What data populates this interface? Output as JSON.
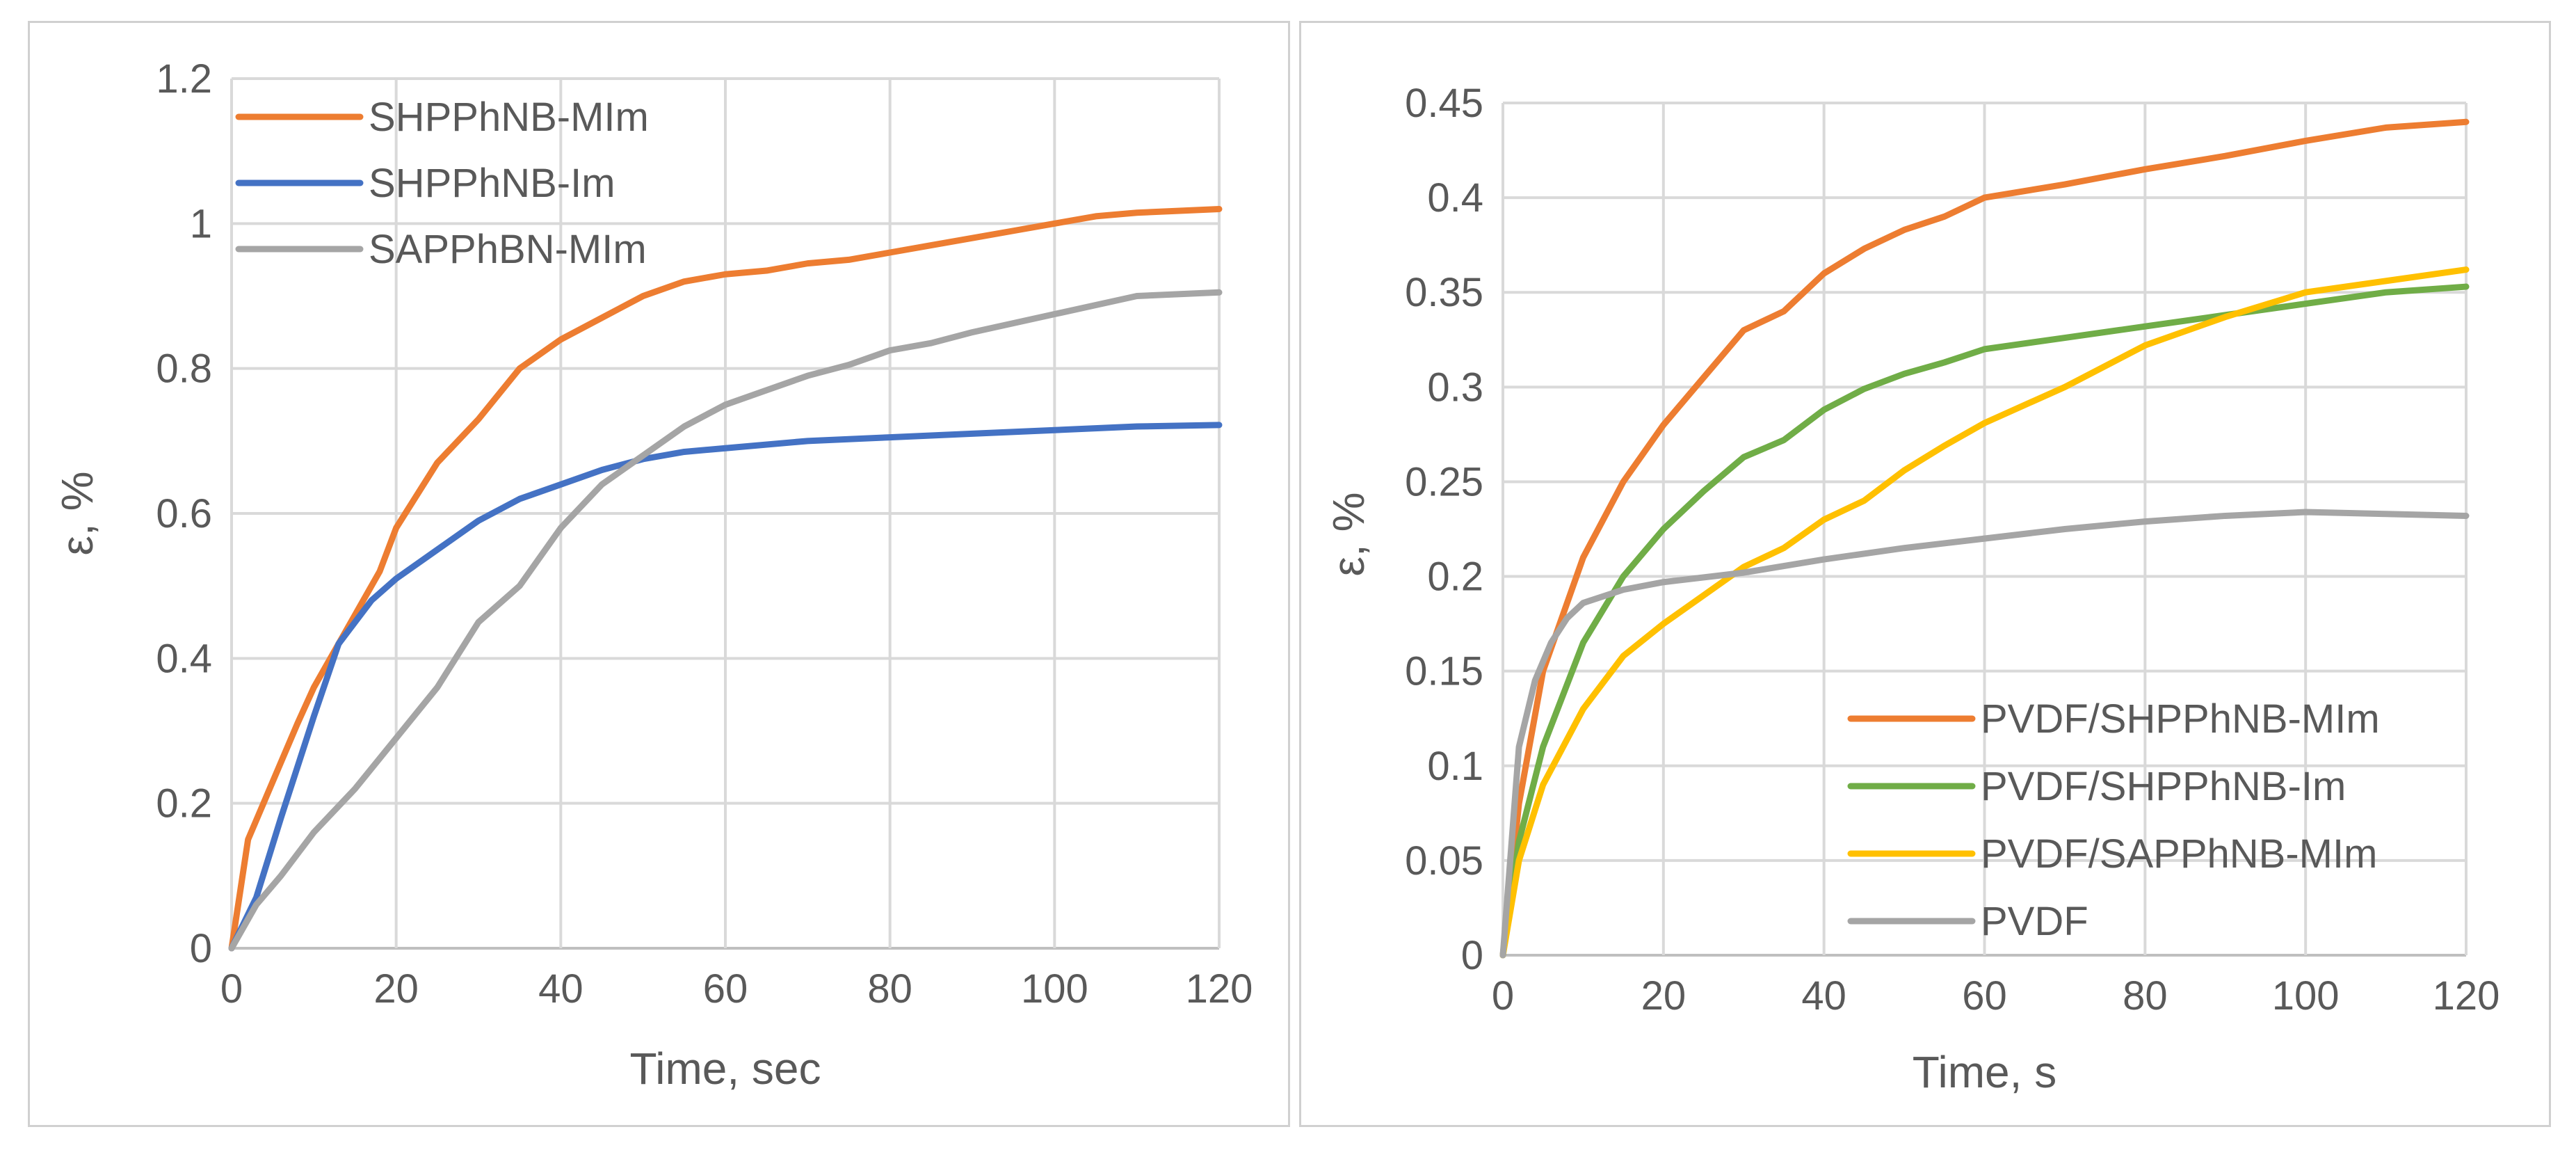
{
  "chart_data": [
    {
      "type": "line",
      "title": "",
      "xlabel": "Time, sec",
      "ylabel": "ε, %",
      "xlim": [
        0,
        120
      ],
      "ylim": [
        0,
        1.2
      ],
      "xticks": [
        0,
        20,
        40,
        60,
        80,
        100,
        120
      ],
      "yticks": [
        0,
        0.2,
        0.4,
        0.6,
        0.8,
        1,
        1.2
      ],
      "xtick_labels": [
        "0",
        "20",
        "40",
        "60",
        "80",
        "100",
        "120"
      ],
      "ytick_labels": [
        "0",
        "0.2",
        "0.4",
        "0.6",
        "0.8",
        "1",
        "1.2"
      ],
      "grid": true,
      "legend_position": "top-left",
      "series": [
        {
          "name": "SHPPhNB-MIm",
          "color": "#ED7D31",
          "x": [
            0,
            2,
            5,
            8,
            10,
            15,
            18,
            20,
            25,
            30,
            35,
            40,
            45,
            50,
            55,
            60,
            65,
            70,
            75,
            80,
            85,
            90,
            95,
            100,
            105,
            110,
            120
          ],
          "y": [
            0,
            0.15,
            0.23,
            0.31,
            0.36,
            0.46,
            0.52,
            0.58,
            0.67,
            0.73,
            0.8,
            0.84,
            0.87,
            0.9,
            0.92,
            0.93,
            0.935,
            0.945,
            0.95,
            0.96,
            0.97,
            0.98,
            0.99,
            1.0,
            1.01,
            1.015,
            1.02
          ]
        },
        {
          "name": "SHPPhNB-Im",
          "color": "#4472C4",
          "x": [
            0,
            3,
            6,
            10,
            13,
            17,
            20,
            25,
            30,
            35,
            40,
            45,
            50,
            55,
            60,
            70,
            80,
            90,
            100,
            110,
            120
          ],
          "y": [
            0,
            0.07,
            0.18,
            0.32,
            0.42,
            0.48,
            0.51,
            0.55,
            0.59,
            0.62,
            0.64,
            0.66,
            0.675,
            0.685,
            0.69,
            0.7,
            0.705,
            0.71,
            0.715,
            0.72,
            0.722
          ]
        },
        {
          "name": "SAPPhBN-MIm",
          "color": "#A5A5A5",
          "x": [
            0,
            3,
            6,
            10,
            15,
            20,
            25,
            30,
            35,
            40,
            45,
            50,
            55,
            60,
            65,
            70,
            75,
            80,
            85,
            90,
            100,
            110,
            120
          ],
          "y": [
            0,
            0.06,
            0.1,
            0.16,
            0.22,
            0.29,
            0.36,
            0.45,
            0.5,
            0.58,
            0.64,
            0.68,
            0.72,
            0.75,
            0.77,
            0.79,
            0.805,
            0.825,
            0.835,
            0.85,
            0.875,
            0.9,
            0.905
          ]
        }
      ]
    },
    {
      "type": "line",
      "title": "",
      "xlabel": "Time, s",
      "ylabel": "ε, %",
      "xlim": [
        0,
        120
      ],
      "ylim": [
        0,
        0.45
      ],
      "xticks": [
        0,
        20,
        40,
        60,
        80,
        100,
        120
      ],
      "yticks": [
        0,
        0.05,
        0.1,
        0.15,
        0.2,
        0.25,
        0.3,
        0.35,
        0.4,
        0.45
      ],
      "xtick_labels": [
        "0",
        "20",
        "40",
        "60",
        "80",
        "100",
        "120"
      ],
      "ytick_labels": [
        "0",
        "0.05",
        "0.1",
        "0.15",
        "0.2",
        "0.25",
        "0.3",
        "0.35",
        "0.4",
        "0.45"
      ],
      "grid": true,
      "legend_position": "bottom-right",
      "series": [
        {
          "name": "PVDF/SHPPhNB-MIm",
          "color": "#ED7D31",
          "x": [
            0,
            2,
            5,
            10,
            15,
            20,
            25,
            30,
            35,
            40,
            45,
            50,
            55,
            60,
            70,
            80,
            90,
            100,
            110,
            120
          ],
          "y": [
            0,
            0.08,
            0.15,
            0.21,
            0.25,
            0.28,
            0.305,
            0.33,
            0.34,
            0.36,
            0.373,
            0.383,
            0.39,
            0.4,
            0.407,
            0.415,
            0.422,
            0.43,
            0.437,
            0.44
          ]
        },
        {
          "name": "PVDF/SHPPhNB-Im",
          "color": "#70AD47",
          "x": [
            0,
            2,
            5,
            10,
            15,
            20,
            25,
            30,
            35,
            40,
            45,
            50,
            55,
            60,
            70,
            80,
            90,
            100,
            110,
            120
          ],
          "y": [
            0,
            0.06,
            0.11,
            0.165,
            0.2,
            0.225,
            0.245,
            0.263,
            0.272,
            0.288,
            0.299,
            0.307,
            0.313,
            0.32,
            0.326,
            0.332,
            0.338,
            0.344,
            0.35,
            0.353
          ]
        },
        {
          "name": "PVDF/SAPPhNB-MIm",
          "color": "#FFC000",
          "x": [
            0,
            2,
            5,
            10,
            15,
            20,
            25,
            30,
            35,
            40,
            45,
            50,
            55,
            60,
            70,
            80,
            90,
            100,
            110,
            120
          ],
          "y": [
            0,
            0.05,
            0.09,
            0.13,
            0.158,
            0.175,
            0.19,
            0.205,
            0.215,
            0.23,
            0.24,
            0.256,
            0.269,
            0.281,
            0.3,
            0.322,
            0.337,
            0.35,
            0.356,
            0.362
          ]
        },
        {
          "name": "PVDF",
          "color": "#A5A5A5",
          "x": [
            0,
            2,
            4,
            6,
            8,
            10,
            15,
            20,
            30,
            40,
            50,
            60,
            70,
            80,
            90,
            100,
            110,
            120
          ],
          "y": [
            0,
            0.11,
            0.145,
            0.165,
            0.178,
            0.186,
            0.193,
            0.197,
            0.202,
            0.209,
            0.215,
            0.22,
            0.225,
            0.229,
            0.232,
            0.234,
            0.233,
            0.232
          ]
        }
      ]
    }
  ]
}
